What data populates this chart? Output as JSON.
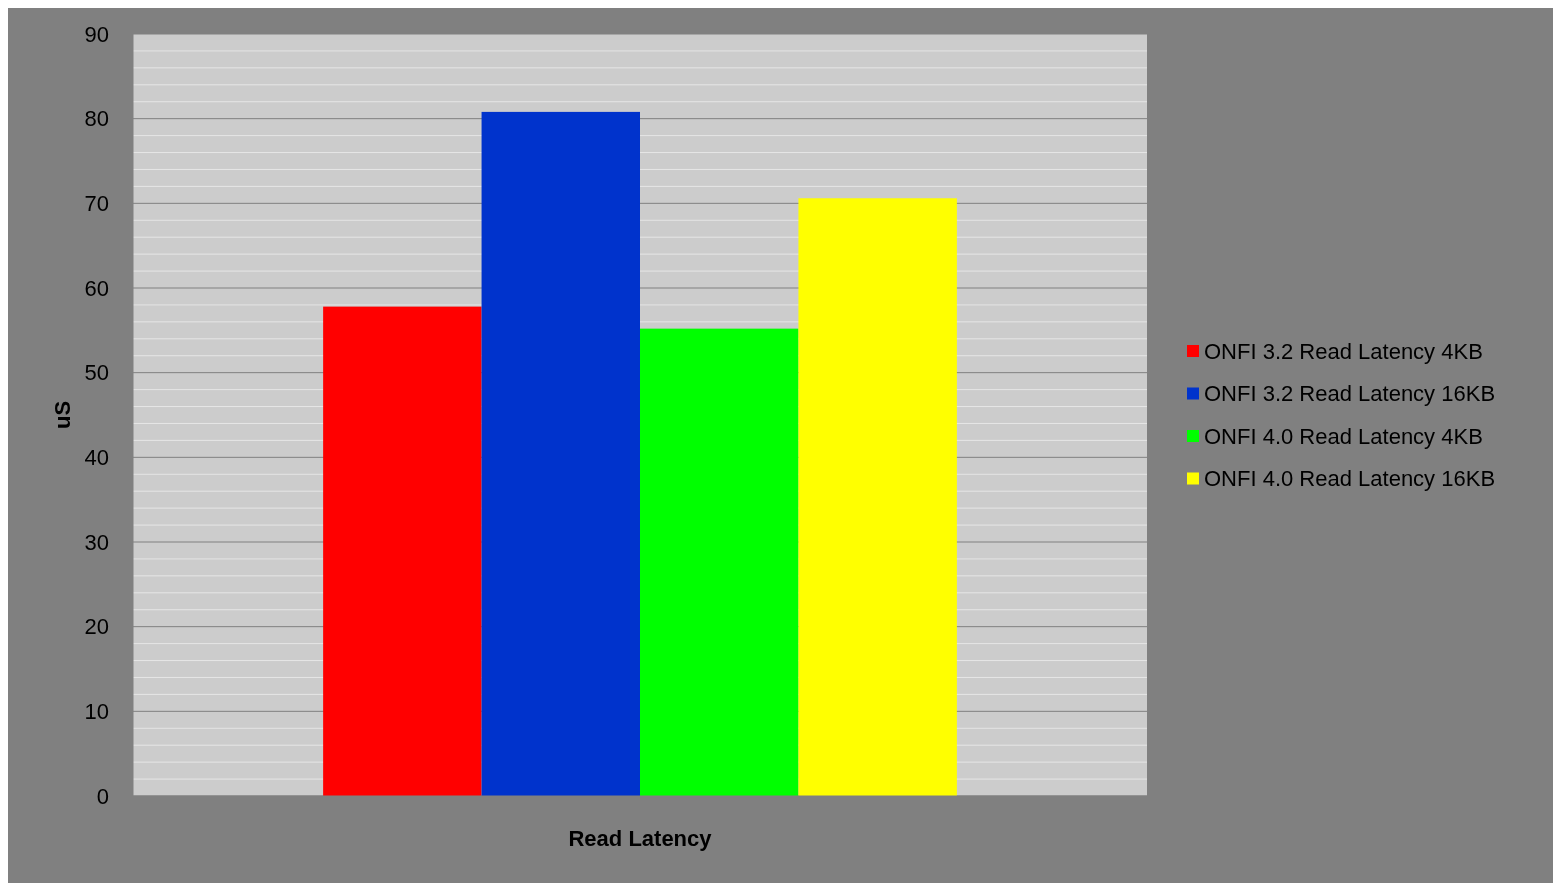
{
  "chart_data": {
    "type": "bar",
    "xlabel": "Read Latency",
    "ylabel": "uS",
    "categories": [
      null
    ],
    "series": [
      {
        "name": "ONFI 3.2  Read Latency 4KB",
        "color": "#ff0000",
        "values": [
          57.8
        ]
      },
      {
        "name": "ONFI 3.2  Read Latency 16KB",
        "color": "#0033cc",
        "values": [
          80.8
        ]
      },
      {
        "name": "ONFI 4.0  Read Latency 4KB",
        "color": "#00ff00",
        "values": [
          55.2
        ]
      },
      {
        "name": "ONFI 4.0  Read Latency 16KB",
        "color": "#ffff00",
        "values": [
          70.6
        ]
      }
    ],
    "ylim": [
      0,
      90
    ],
    "yticks": [
      0,
      {
        "value": 2,
        "label": null
      },
      {
        "value": 4,
        "label": null
      },
      {
        "value": 6,
        "label": null
      },
      {
        "value": 8,
        "label": null
      },
      10,
      {
        "value": 12,
        "label": null
      },
      {
        "value": 14,
        "label": null
      },
      {
        "value": 16,
        "label": null
      },
      {
        "value": 18,
        "label": null
      },
      20,
      {
        "value": 22,
        "label": null
      },
      {
        "value": 24,
        "label": null
      },
      {
        "value": 26,
        "label": null
      },
      {
        "value": 28,
        "label": null
      },
      30,
      {
        "value": 32,
        "label": null
      },
      {
        "value": 34,
        "label": null
      },
      {
        "value": 36,
        "label": null
      },
      {
        "value": 38,
        "label": null
      },
      40,
      {
        "value": 42,
        "label": null
      },
      {
        "value": 44,
        "label": null
      },
      {
        "value": 46,
        "label": null
      },
      {
        "value": 48,
        "label": null
      },
      50,
      {
        "value": 52,
        "label": null
      },
      {
        "value": 54,
        "label": null
      },
      {
        "value": 56,
        "label": null
      },
      {
        "value": 58,
        "label": null
      },
      60,
      {
        "value": 62,
        "label": null
      },
      {
        "value": 64,
        "label": null
      },
      {
        "value": 66,
        "label": null
      },
      {
        "value": 68,
        "label": null
      },
      70,
      {
        "value": 72,
        "label": null
      },
      {
        "value": 74,
        "label": null
      },
      {
        "value": 76,
        "label": null
      },
      {
        "value": 78,
        "label": null
      },
      80,
      {
        "value": 82,
        "label": null
      },
      {
        "value": 84,
        "label": null
      },
      {
        "value": 86,
        "label": null
      },
      {
        "value": 88,
        "label": null
      },
      90
    ],
    "grid": "y",
    "legend": "right"
  }
}
